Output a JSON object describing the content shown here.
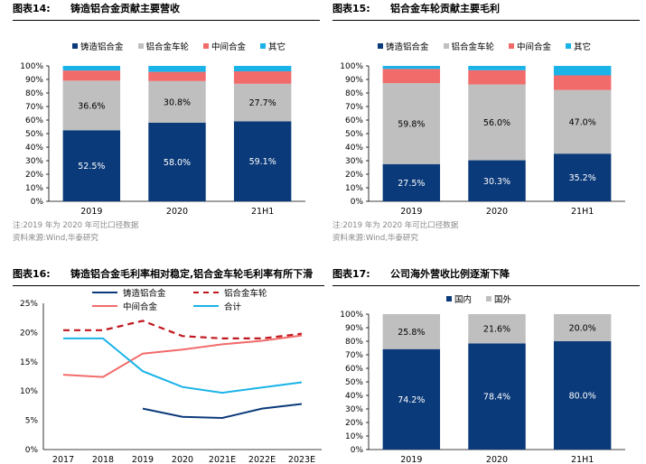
{
  "panels": {
    "p1": {
      "figure_no": "图表14:",
      "title": "铸造铝合金贡献主要营收",
      "note": "注:2019 年为 2020 年可比口径数据",
      "source": "资料来源:Wind,华泰研究"
    },
    "p2": {
      "figure_no": "图表15:",
      "title": "铝合金车轮贡献主要毛利",
      "note": "注:2019 年为 2020 年可比口径数据",
      "source": "资料来源:Wind,华泰研究"
    },
    "p3": {
      "figure_no": "图表16:",
      "title": "铸造铝合金毛利率相对稳定,铝合金车轮毛利率有所下滑"
    },
    "p4": {
      "figure_no": "图表17:",
      "title": "公司海外营收比例逐渐下降"
    }
  },
  "colors": {
    "navy": "#0b3a7a",
    "gray": "#bfbfbf",
    "red": "#f26b6b",
    "cyan": "#1ab3e8",
    "darkred": "#c0171d"
  },
  "chart_data": [
    {
      "id": "p1",
      "type": "bar",
      "stacked": true,
      "categories": [
        "2019",
        "2020",
        "21H1"
      ],
      "series": [
        {
          "name": "铸造铝合金",
          "color": "#0b3a7a",
          "values": [
            52.5,
            58.0,
            59.1
          ],
          "labels": [
            "52.5%",
            "58.0%",
            "59.1%"
          ]
        },
        {
          "name": "铝合金车轮",
          "color": "#bfbfbf",
          "values": [
            36.6,
            30.8,
            27.7
          ],
          "labels": [
            "36.6%",
            "30.8%",
            "27.7%"
          ]
        },
        {
          "name": "中间合金",
          "color": "#f26b6b",
          "values": [
            7.5,
            6.8,
            9.2
          ]
        },
        {
          "name": "其它",
          "color": "#1ab3e8",
          "values": [
            3.4,
            4.4,
            4.0
          ]
        }
      ],
      "yticks": [
        "0%",
        "10%",
        "20%",
        "30%",
        "40%",
        "50%",
        "60%",
        "70%",
        "80%",
        "90%",
        "100%"
      ],
      "ylim": [
        0,
        100
      ],
      "legend": "top"
    },
    {
      "id": "p2",
      "type": "bar",
      "stacked": true,
      "categories": [
        "2019",
        "2020",
        "21H1"
      ],
      "series": [
        {
          "name": "铸造铝合金",
          "color": "#0b3a7a",
          "values": [
            27.5,
            30.3,
            35.2
          ],
          "labels": [
            "27.5%",
            "30.3%",
            "35.2%"
          ]
        },
        {
          "name": "铝合金车轮",
          "color": "#bfbfbf",
          "values": [
            59.8,
            56.0,
            47.0
          ],
          "labels": [
            "59.8%",
            "56.0%",
            "47.0%"
          ]
        },
        {
          "name": "中间合金",
          "color": "#f26b6b",
          "values": [
            10.5,
            10.5,
            10.8
          ]
        },
        {
          "name": "其它",
          "color": "#1ab3e8",
          "values": [
            2.2,
            3.2,
            7.0
          ]
        }
      ],
      "yticks": [
        "0%",
        "10%",
        "20%",
        "30%",
        "40%",
        "50%",
        "60%",
        "70%",
        "80%",
        "90%",
        "100%"
      ],
      "ylim": [
        0,
        100
      ],
      "legend": "top"
    },
    {
      "id": "p3",
      "type": "line",
      "categories": [
        "2017",
        "2018",
        "2019",
        "2020",
        "2021E",
        "2022E",
        "2023E"
      ],
      "series": [
        {
          "name": "铸造铝合金",
          "color": "#0b3a7a",
          "dash": false,
          "values": [
            null,
            null,
            7.0,
            5.6,
            5.4,
            7.0,
            7.8
          ]
        },
        {
          "name": "铝合金车轮",
          "color": "#c0171d",
          "dash": true,
          "values": [
            20.4,
            20.4,
            22.0,
            19.4,
            19.0,
            19.0,
            19.8
          ]
        },
        {
          "name": "中间合金",
          "color": "#f26b6b",
          "dash": false,
          "values": [
            12.8,
            12.4,
            16.4,
            17.1,
            18.0,
            18.6,
            19.5
          ]
        },
        {
          "name": "合计",
          "color": "#1ab3e8",
          "dash": false,
          "values": [
            19.0,
            19.0,
            13.4,
            10.7,
            9.7,
            10.6,
            11.5
          ]
        }
      ],
      "yticks": [
        "0%",
        "5%",
        "10%",
        "15%",
        "20%",
        "25%"
      ],
      "ylim": [
        0,
        25
      ],
      "legend": "top"
    },
    {
      "id": "p4",
      "type": "bar",
      "stacked": true,
      "categories": [
        "2019",
        "2020",
        "21H1"
      ],
      "series": [
        {
          "name": "国内",
          "color": "#0b3a7a",
          "values": [
            74.2,
            78.4,
            80.0
          ],
          "labels": [
            "74.2%",
            "78.4%",
            "80.0%"
          ]
        },
        {
          "name": "国外",
          "color": "#bfbfbf",
          "values": [
            25.8,
            21.6,
            20.0
          ],
          "labels": [
            "25.8%",
            "21.6%",
            "20.0%"
          ]
        }
      ],
      "yticks": [
        "0%",
        "10%",
        "20%",
        "30%",
        "40%",
        "50%",
        "60%",
        "70%",
        "80%",
        "90%",
        "100%"
      ],
      "ylim": [
        0,
        100
      ],
      "legend": "top"
    }
  ]
}
